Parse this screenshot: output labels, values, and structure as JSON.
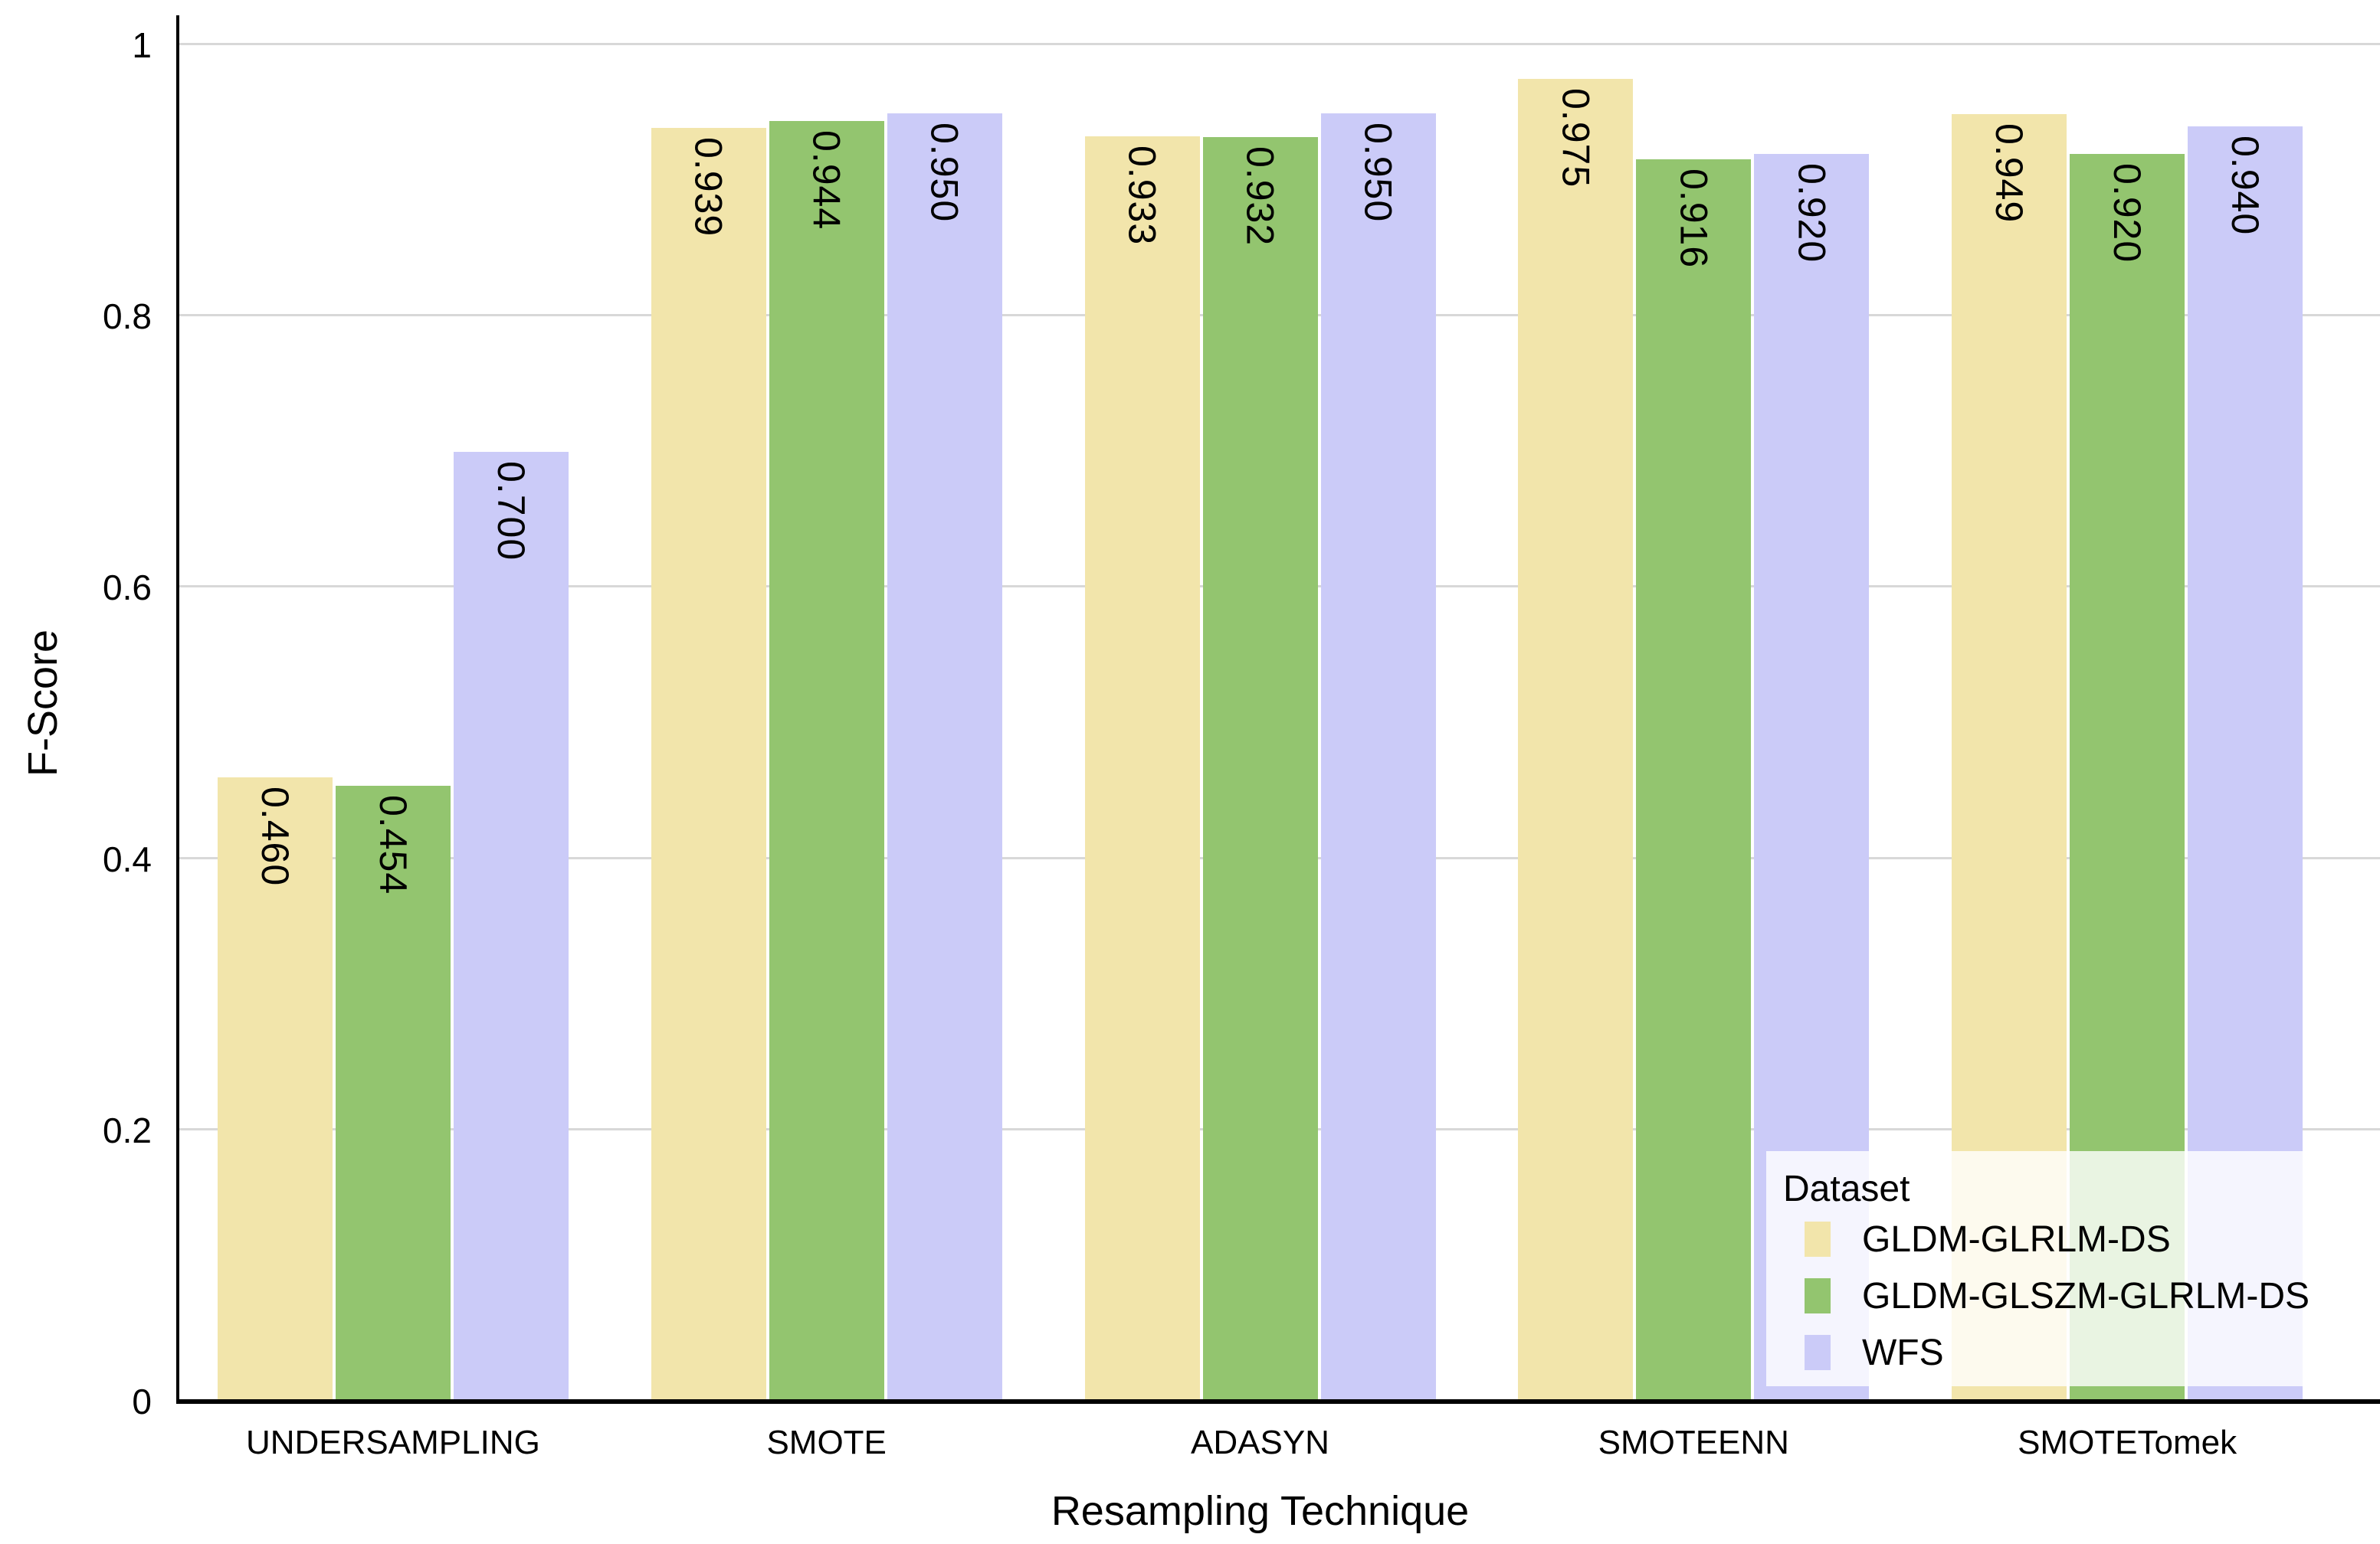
{
  "chart_data": {
    "type": "bar",
    "title": "",
    "xlabel": "Resampling Technique",
    "ylabel": "F-Score",
    "categories": [
      "UNDERSAMPLING",
      "SMOTE",
      "ADASYN",
      "SMOTEENN",
      "SMOTETomek"
    ],
    "series": [
      {
        "name": "GLDM-GLRLM-DS",
        "color": "#F2E5AB",
        "values": [
          0.46,
          0.939,
          0.933,
          0.975,
          0.949
        ],
        "labels": [
          "0.460",
          "0.939",
          "0.933",
          "0.975",
          "0.949"
        ]
      },
      {
        "name": "GLDM-GLSZM-GLRLM-DS",
        "color": "#93C56F",
        "values": [
          0.454,
          0.944,
          0.932,
          0.916,
          0.92
        ],
        "labels": [
          "0.454",
          "0.944",
          "0.932",
          "0.916",
          "0.920"
        ]
      },
      {
        "name": "WFS",
        "color": "#CBCBF8",
        "values": [
          0.7,
          0.95,
          0.95,
          0.92,
          0.94
        ],
        "labels": [
          "0.700",
          "0.950",
          "0.950",
          "0.920",
          "0.940"
        ]
      }
    ],
    "yticks": [
      {
        "value": 0,
        "label": "0"
      },
      {
        "value": 0.2,
        "label": "0.2"
      },
      {
        "value": 0.4,
        "label": "0.4"
      },
      {
        "value": 0.6,
        "label": "0.6"
      },
      {
        "value": 0.8,
        "label": "0.8"
      },
      {
        "value": 1.0,
        "label": "1"
      }
    ],
    "ylim": [
      0,
      1.022
    ],
    "grid": "horizontal",
    "gridline_color": "#d8d8d8",
    "legend": {
      "title": "Dataset",
      "position": "lower right"
    }
  }
}
